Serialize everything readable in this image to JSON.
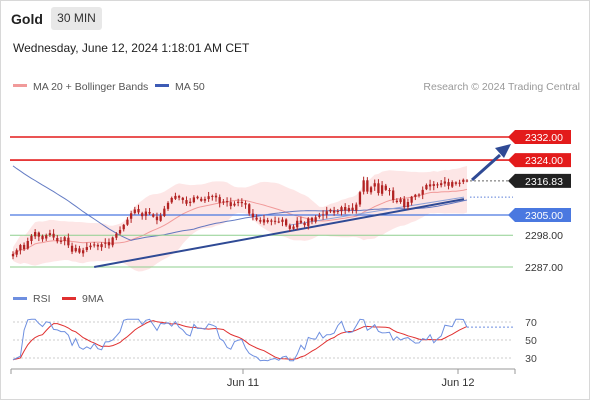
{
  "header": {
    "symbol": "Gold",
    "timeframe": "30 MIN",
    "datetime": "Wednesday, June 12, 2024 1:18:01 AM CET"
  },
  "legend": {
    "ma20": "MA 20 + Bollinger Bands",
    "ma50": "MA 50",
    "credit": "Research © 2024 Trading Central"
  },
  "rsi_legend": {
    "rsi": "RSI",
    "ma9": "9MA"
  },
  "colors": {
    "red_level": "#e31b1b",
    "blue_level": "#4a78e0",
    "green_level": "#8fcf8f",
    "candle": "#b22222",
    "bollinger_fill": "#fde2e2",
    "ma20": "#f19a9a",
    "ma50": "#3d5bb5",
    "trend": "#2f4a95",
    "rsi": "#6e8fe0",
    "rsi_ma": "#e03030",
    "current_badge": "#222222"
  },
  "chart_data": [
    {
      "type": "candlestick",
      "x_ticks": [
        "Jun 11",
        "Jun 12"
      ],
      "ylim": [
        2280,
        2340
      ],
      "levels": [
        {
          "value": 2332.0,
          "label": "2332.00",
          "style": "red-badge"
        },
        {
          "value": 2324.0,
          "label": "2324.00",
          "style": "red-badge"
        },
        {
          "value": 2316.83,
          "label": "2316.83",
          "style": "current"
        },
        {
          "value": 2305.0,
          "label": "2305.00",
          "style": "blue-badge"
        },
        {
          "value": 2298.0,
          "label": "2298.00",
          "style": "green"
        },
        {
          "value": 2287.0,
          "label": "2287.00",
          "style": "green"
        }
      ],
      "close": [
        2291.5,
        2292.8,
        2294.6,
        2293.2,
        2296.0,
        2297.8,
        2299.1,
        2297.5,
        2296.6,
        2298.0,
        2298.7,
        2297.2,
        2295.9,
        2296.1,
        2297.3,
        2294.5,
        2292.3,
        2293.6,
        2292.0,
        2292.8,
        2293.9,
        2294.4,
        2294.8,
        2294.1,
        2294.9,
        2295.4,
        2294.5,
        2297.2,
        2298.5,
        2299.8,
        2301.6,
        2303.4,
        2305.6,
        2306.9,
        2305.9,
        2304.6,
        2306.2,
        2305.5,
        2304.4,
        2303.2,
        2304.8,
        2307.2,
        2309.2,
        2310.9,
        2311.6,
        2311.0,
        2310.2,
        2308.9,
        2309.6,
        2311.1,
        2310.8,
        2309.9,
        2310.5,
        2311.5,
        2311.6,
        2311.1,
        2309.2,
        2309.7,
        2309.4,
        2308.1,
        2308.9,
        2309.6,
        2309.1,
        2308.6,
        2305.5,
        2304.3,
        2303.4,
        2302.7,
        2303.5,
        2302.6,
        2303.1,
        2302.8,
        2302.7,
        2303.4,
        2301.4,
        2300.2,
        2301.0,
        2303.0,
        2302.3,
        2301.5,
        2303.8,
        2302.8,
        2304.2,
        2304.8,
        2305.2,
        2306.3,
        2306.8,
        2305.8,
        2306.4,
        2307.7,
        2306.5,
        2307.4,
        2306.6,
        2308.6,
        2312.9,
        2317.0,
        2313.1,
        2314.6,
        2316.0,
        2312.6,
        2315.3,
        2313.7,
        2313.3,
        2310.2,
        2309.5,
        2310.5,
        2307.7,
        2309.5,
        2311.3,
        2312.0,
        2312.1,
        2313.7,
        2315.4,
        2314.9,
        2315.7,
        2315.6,
        2316.0,
        2316.6,
        2315.1,
        2316.4,
        2315.8,
        2316.2,
        2317.2,
        2316.83
      ]
    },
    {
      "type": "line",
      "indicator": "RSI",
      "x_ticks": [
        "Jun 11",
        "Jun 12"
      ],
      "y_ticks": [
        70,
        50,
        30
      ],
      "ylim": [
        25,
        75
      ]
    }
  ]
}
